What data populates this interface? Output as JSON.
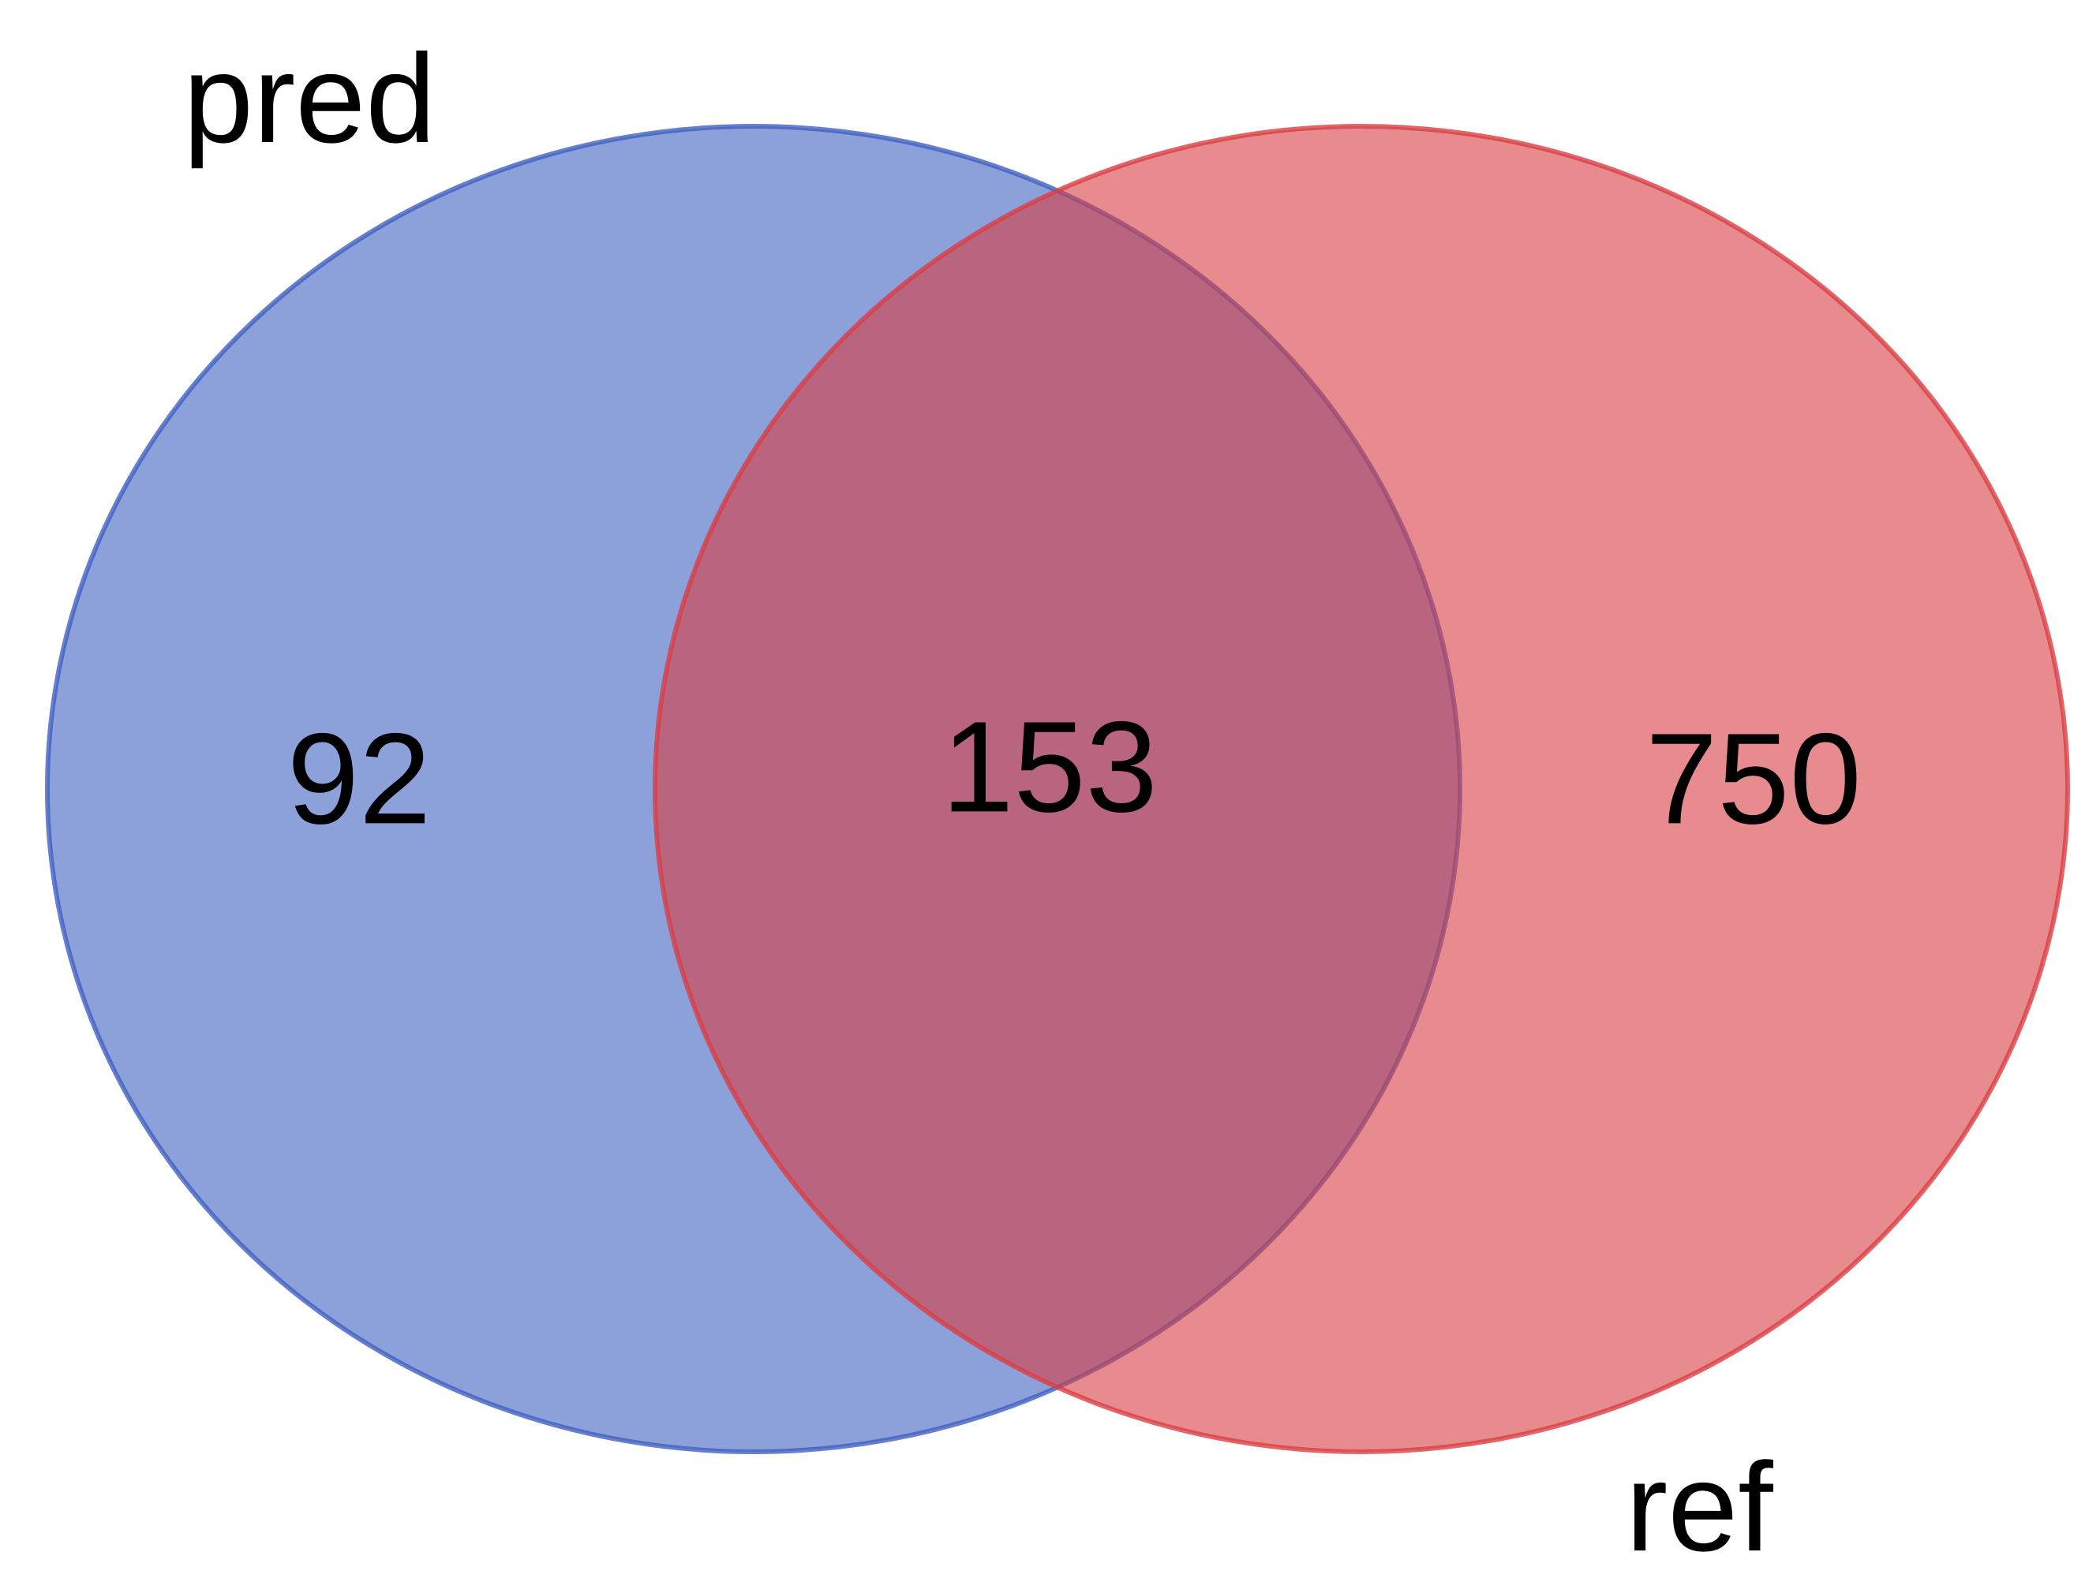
{
  "diagram": {
    "type": "venn2",
    "sets": [
      {
        "name": "pred",
        "color": "#4060C0"
      },
      {
        "name": "ref",
        "color": "#D93E44"
      }
    ],
    "regions": {
      "pred_only": "92",
      "intersection": "153",
      "ref_only": "750"
    },
    "colors": {
      "pred_fill": "#8a9bd6",
      "ref_fill": "#e48b8b",
      "overlap_fill": "#a95a76"
    }
  }
}
